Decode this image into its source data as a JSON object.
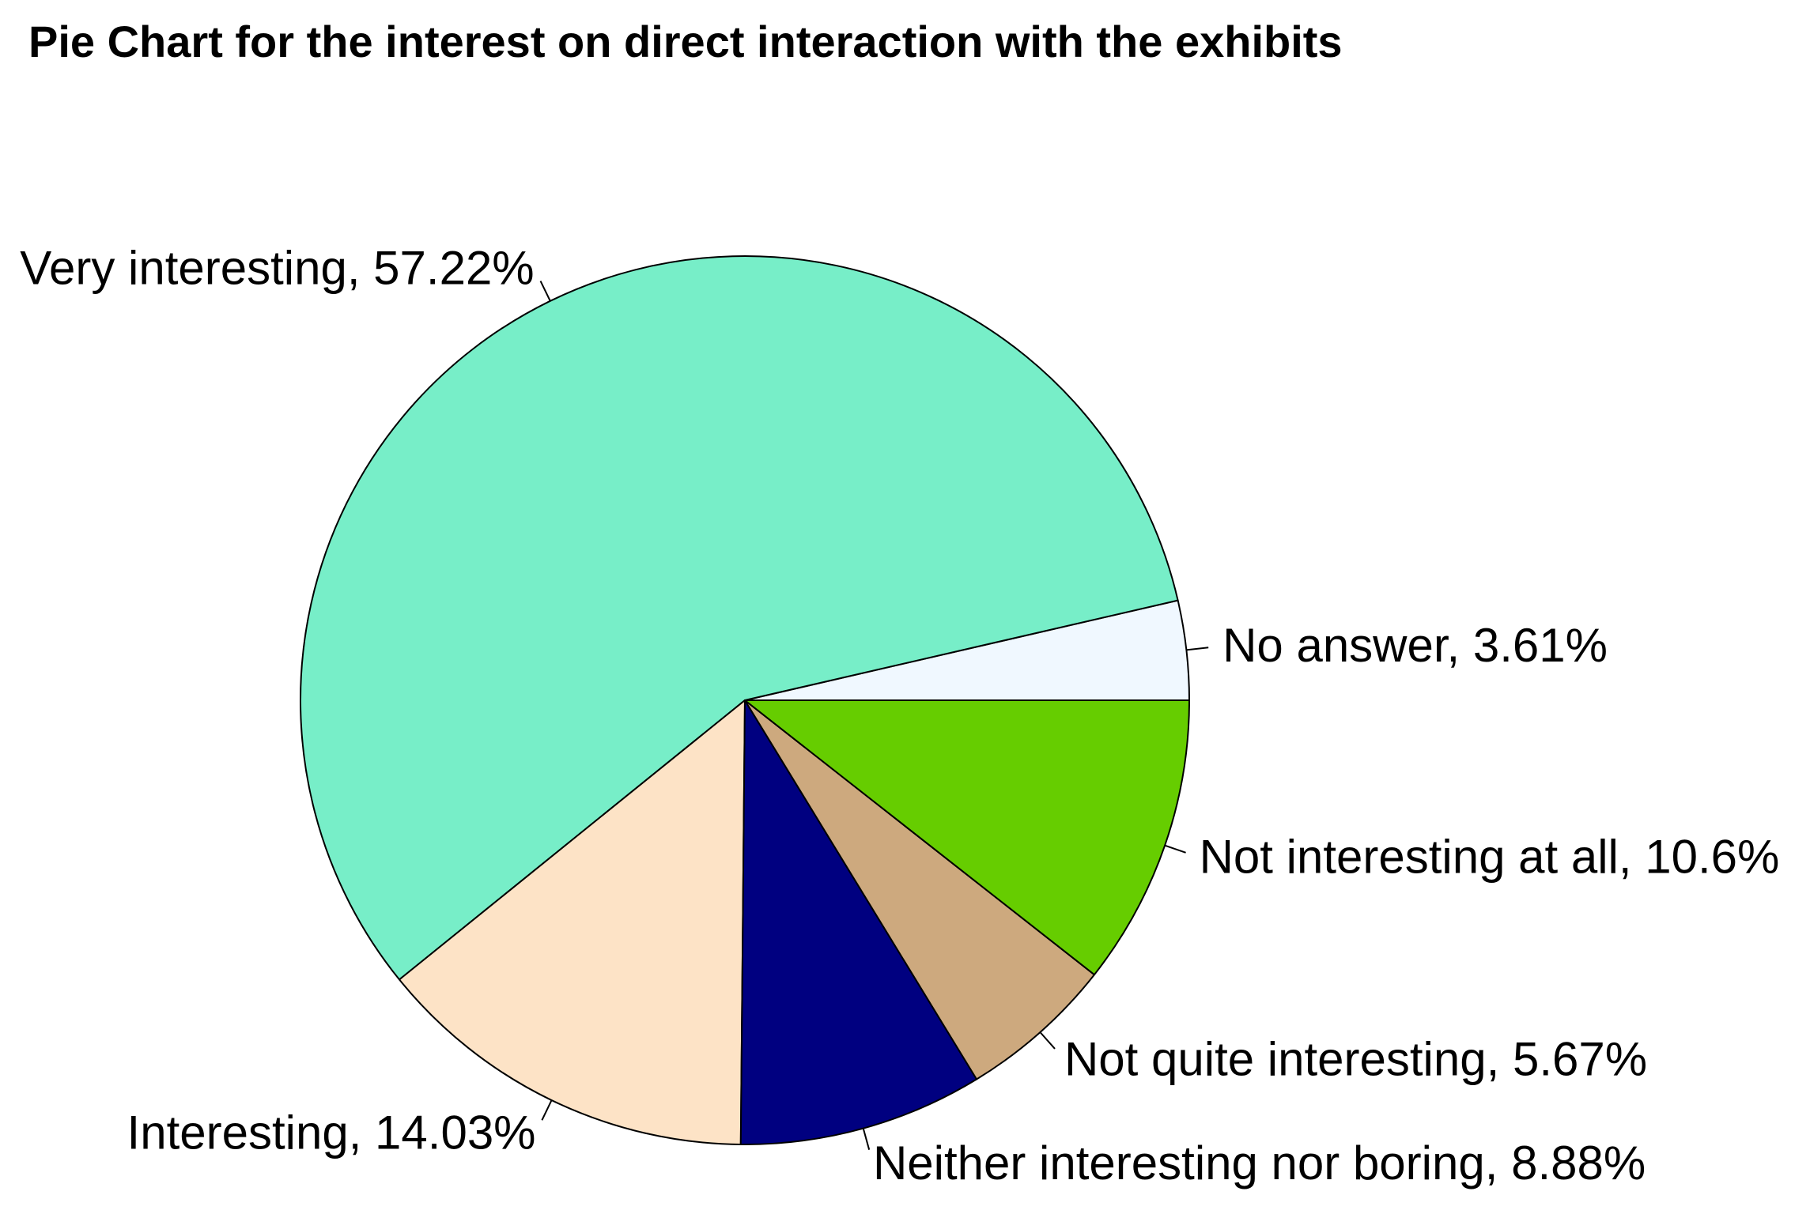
{
  "chart_data": {
    "type": "pie",
    "title": "Pie Chart for the interest on direct interaction with the exhibits",
    "slices": [
      {
        "name": "No answer",
        "value": 3.61,
        "label": "No answer, 3.61%",
        "color": "#f0f8ff"
      },
      {
        "name": "Very interesting",
        "value": 57.22,
        "label": "Very interesting, 57.22%",
        "color": "#77eec8"
      },
      {
        "name": "Interesting",
        "value": 14.03,
        "label": "Interesting, 14.03%",
        "color": "#fde3c6"
      },
      {
        "name": "Neither interesting nor boring",
        "value": 8.88,
        "label": "Neither interesting nor boring, 8.88%",
        "color": "#000080"
      },
      {
        "name": "Not quite interesting",
        "value": 5.67,
        "label": "Not quite interesting, 5.67%",
        "color": "#cda97e"
      },
      {
        "name": "Not interesting at all",
        "value": 10.6,
        "label": "Not interesting at all, 10.6%",
        "color": "#66cd00"
      }
    ],
    "start_angle_deg": 0,
    "direction": "counterclockwise",
    "legend": "none",
    "labels_outside": true
  }
}
